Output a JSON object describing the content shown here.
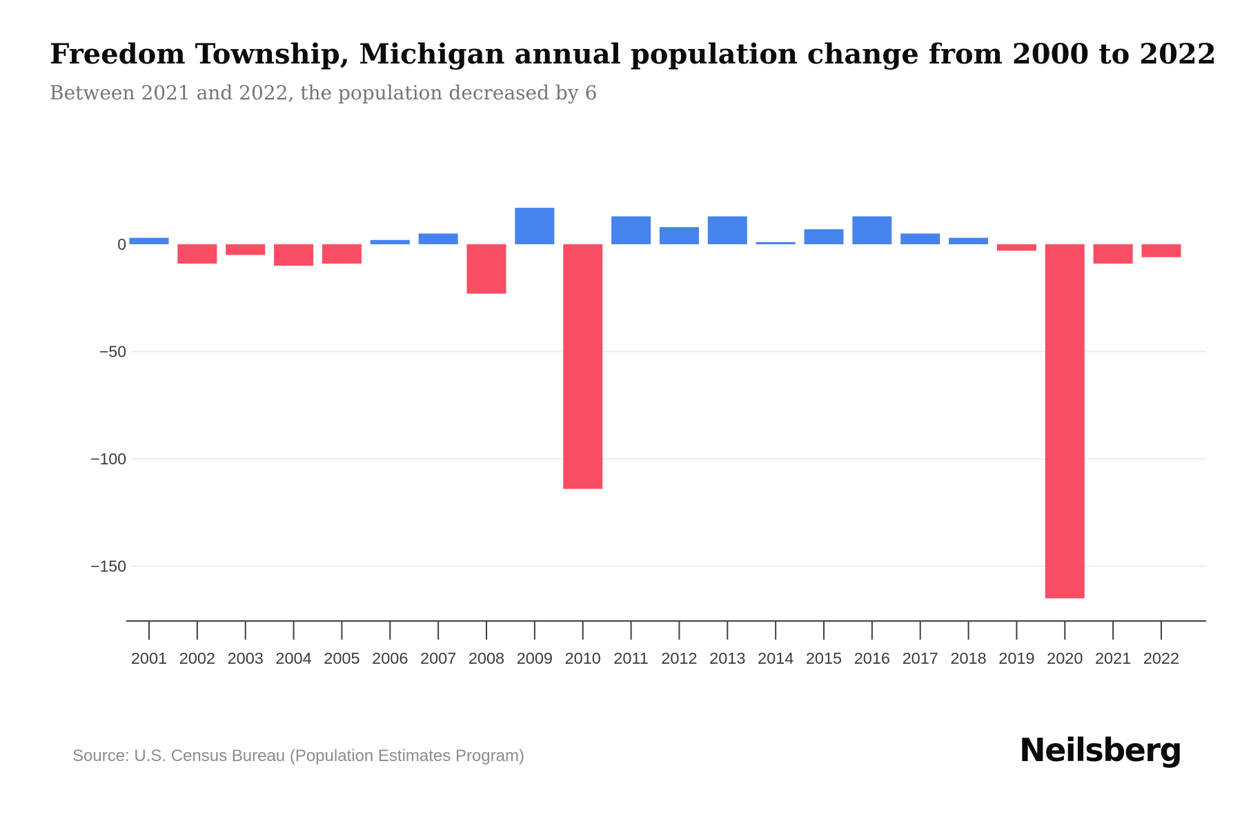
{
  "page": {
    "title": "Freedom Township, Michigan annual population change from 2000 to 2022",
    "subtitle": "Between 2021 and 2022, the population decreased by 6",
    "source": "Source: U.S. Census Bureau (Population Estimates Program)",
    "brand": "Neilsberg"
  },
  "colors": {
    "positive_bar": "#4584EC",
    "negative_bar": "#F94D64",
    "gridline": "#ededed",
    "axis": "#3f3f3f",
    "tick_label": "#3b3b3b",
    "title": "#0b0b0b",
    "subtitle": "#757575",
    "source": "#8c8c8c"
  },
  "chart_data": {
    "type": "bar",
    "title": "Freedom Township, Michigan annual population change from 2000 to 2022",
    "subtitle": "Between 2021 and 2022, the population decreased by 6",
    "xlabel": "",
    "ylabel": "",
    "categories": [
      "2001",
      "2002",
      "2003",
      "2004",
      "2005",
      "2006",
      "2007",
      "2008",
      "2009",
      "2010",
      "2011",
      "2012",
      "2013",
      "2014",
      "2015",
      "2016",
      "2017",
      "2018",
      "2019",
      "2020",
      "2021",
      "2022"
    ],
    "values": [
      3,
      -9,
      -5,
      -10,
      -9,
      2,
      5,
      -23,
      17,
      -114,
      13,
      8,
      13,
      1,
      7,
      13,
      5,
      3,
      -3,
      -165,
      -9,
      -6
    ],
    "yticks": [
      0,
      -50,
      -100,
      -150
    ],
    "ylim": [
      -175,
      25
    ],
    "grid": "horizontal, only at negative ticks",
    "legend": "none",
    "bar_color_rule": "blue for increase, red for decrease"
  }
}
